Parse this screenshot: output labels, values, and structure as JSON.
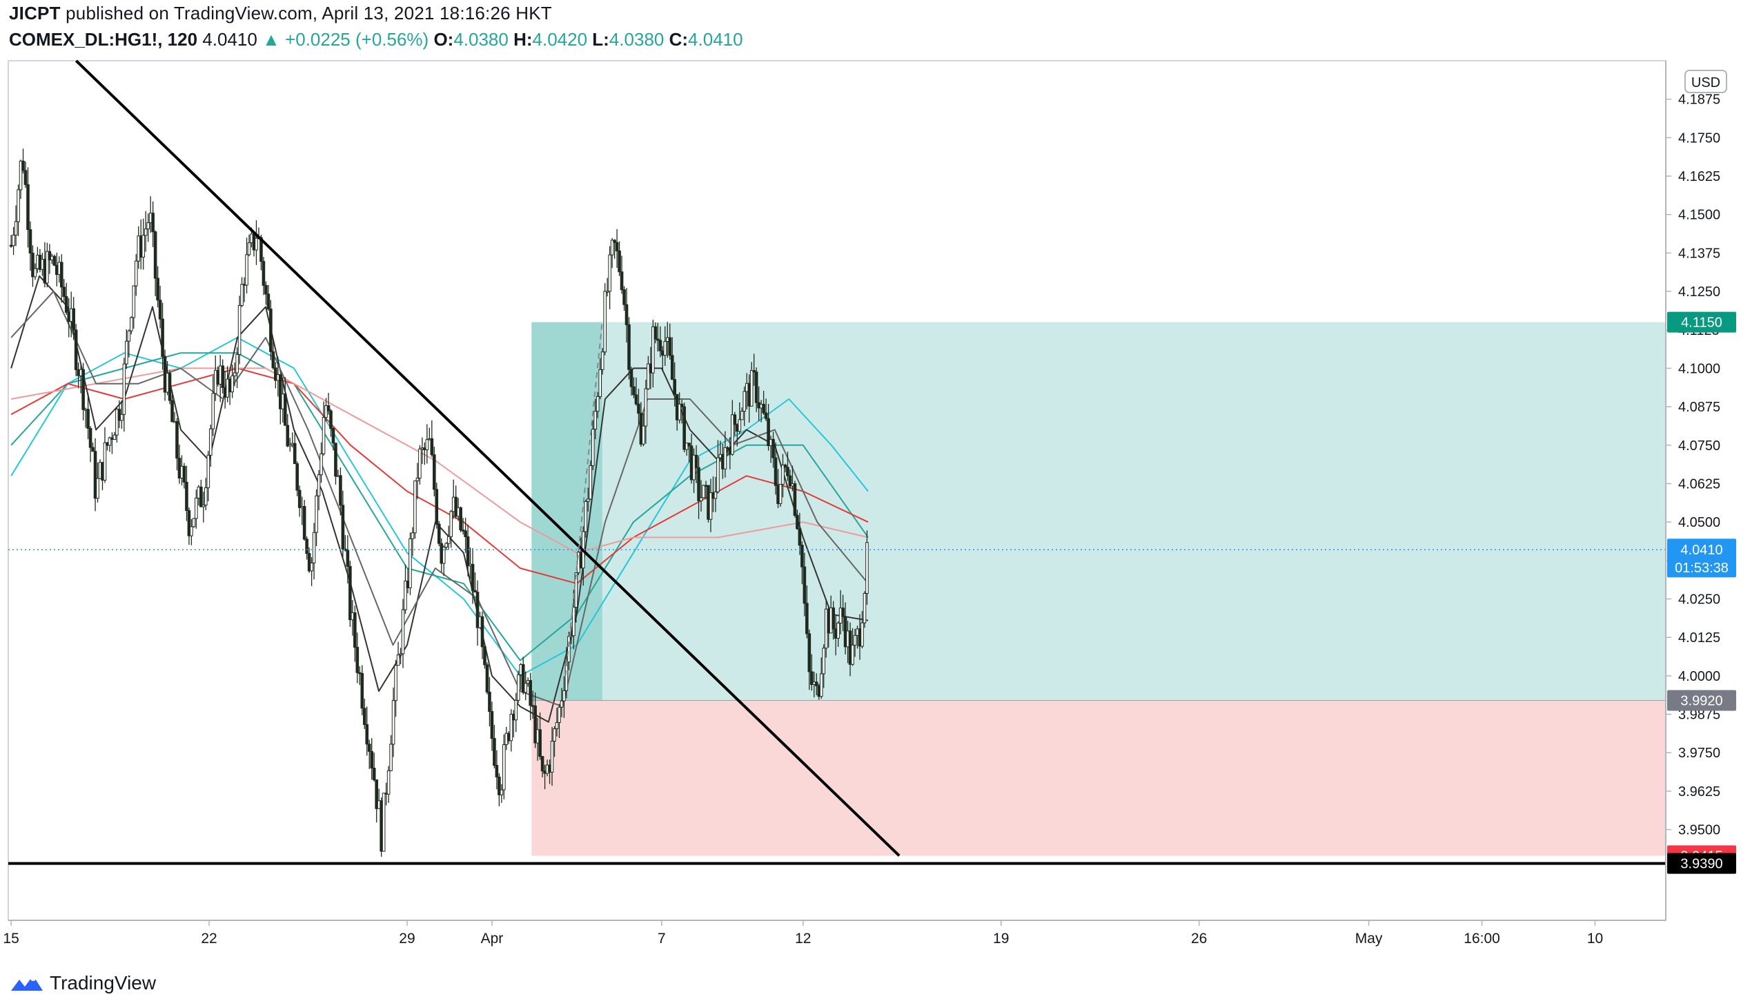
{
  "header": {
    "author": "JICPT",
    "published": "published on TradingView.com, April 13, 2021 18:16:26 HKT",
    "symbol": "COMEX_DL:HG1!, 120",
    "last": "4.0410",
    "arrow": "▲",
    "change": "+0.0225 (+0.56%)",
    "o_label": "O:",
    "o_value": "4.0380",
    "h_label": "H:",
    "h_value": "4.0420",
    "l_label": "L:",
    "l_value": "4.0380",
    "c_label": "C:",
    "c_value": "4.0410"
  },
  "footer": {
    "brand": "TradingView"
  },
  "colors": {
    "up_text": "#26a69a",
    "profit_zone": "#b2dfdb",
    "loss_zone": "#f8c8c8",
    "current_price_label": "#2196f3",
    "entry_label": "#787b86",
    "target_label": "#089981",
    "stop_label": "#f23645",
    "support_label": "#000000",
    "ma_teal": "#26c6da",
    "ma_red": "#e53935",
    "ma_salmon": "#ef9a9a"
  },
  "chart_data": {
    "type": "candlestick",
    "currency": "USD",
    "y_ticks": [
      "4.1875",
      "4.1750",
      "4.1625",
      "4.1500",
      "4.1375",
      "4.1250",
      "4.1125",
      "4.1000",
      "4.0875",
      "4.0750",
      "4.0625",
      "4.0500",
      "4.0375",
      "4.0250",
      "4.0125",
      "4.0000",
      "3.9875",
      "3.9750",
      "3.9625",
      "3.9500"
    ],
    "y_tick_values": [
      4.1875,
      4.175,
      4.1625,
      4.15,
      4.1375,
      4.125,
      4.1125,
      4.1,
      4.0875,
      4.075,
      4.0625,
      4.05,
      4.0375,
      4.025,
      4.0125,
      4.0,
      3.9875,
      3.975,
      3.9625,
      3.95
    ],
    "ylim": [
      3.9205,
      4.2
    ],
    "x_ticks": [
      {
        "label": "15",
        "day": 0
      },
      {
        "label": "22",
        "day": 7
      },
      {
        "label": "29",
        "day": 14
      },
      {
        "label": "Apr",
        "day": 17
      },
      {
        "label": "7",
        "day": 23
      },
      {
        "label": "12",
        "day": 28
      },
      {
        "label": "19",
        "day": 35
      },
      {
        "label": "26",
        "day": 42
      },
      {
        "label": "May",
        "day": 48
      },
      {
        "label": "16:00",
        "day": 52
      },
      {
        "label": "10",
        "day": 56
      }
    ],
    "xlim": [
      -0.1,
      58.5
    ],
    "price_labels": {
      "target": {
        "value": 4.115,
        "text": "4.1150"
      },
      "current": {
        "value": 4.041,
        "text": "4.0410",
        "countdown": "01:53:38"
      },
      "entry": {
        "value": 3.992,
        "text": "3.9920"
      },
      "stop": {
        "value": 3.9415,
        "text": "3.9415"
      },
      "support": {
        "value": 3.939,
        "text": "3.9390"
      }
    },
    "position": {
      "type": "long",
      "start_day": 18.4,
      "end_day": 58.5,
      "entry": 3.992,
      "target": 4.115,
      "stop": 3.9415
    },
    "trendline": {
      "from": {
        "day": 2.3,
        "price": 4.2
      },
      "to": {
        "day": 31.4,
        "price": 3.9415
      }
    },
    "support_line": {
      "price": 3.939
    },
    "dashed_projection": {
      "from": {
        "day": 19.6,
        "price": 4.0
      },
      "to": {
        "day": 20.9,
        "price": 4.115
      }
    },
    "series_anchors": [
      {
        "day": 0.0,
        "price": 4.14
      },
      {
        "day": 0.4,
        "price": 4.17
      },
      {
        "day": 0.8,
        "price": 4.13
      },
      {
        "day": 1.5,
        "price": 4.135
      },
      {
        "day": 2.0,
        "price": 4.12
      },
      {
        "day": 2.6,
        "price": 4.09
      },
      {
        "day": 3.0,
        "price": 4.06
      },
      {
        "day": 3.4,
        "price": 4.075
      },
      {
        "day": 3.9,
        "price": 4.09
      },
      {
        "day": 4.4,
        "price": 4.135
      },
      {
        "day": 4.9,
        "price": 4.15
      },
      {
        "day": 5.4,
        "price": 4.1
      },
      {
        "day": 5.9,
        "price": 4.07
      },
      {
        "day": 6.3,
        "price": 4.05
      },
      {
        "day": 6.8,
        "price": 4.06
      },
      {
        "day": 7.3,
        "price": 4.1
      },
      {
        "day": 7.8,
        "price": 4.09
      },
      {
        "day": 8.2,
        "price": 4.13
      },
      {
        "day": 8.7,
        "price": 4.145
      },
      {
        "day": 9.2,
        "price": 4.11
      },
      {
        "day": 9.7,
        "price": 4.08
      },
      {
        "day": 10.2,
        "price": 4.06
      },
      {
        "day": 10.6,
        "price": 4.035
      },
      {
        "day": 11.1,
        "price": 4.09
      },
      {
        "day": 11.6,
        "price": 4.06
      },
      {
        "day": 12.0,
        "price": 4.02
      },
      {
        "day": 12.4,
        "price": 3.995
      },
      {
        "day": 12.8,
        "price": 3.97
      },
      {
        "day": 13.1,
        "price": 3.948
      },
      {
        "day": 13.5,
        "price": 3.99
      },
      {
        "day": 14.0,
        "price": 4.03
      },
      {
        "day": 14.4,
        "price": 4.07
      },
      {
        "day": 14.8,
        "price": 4.075
      },
      {
        "day": 15.2,
        "price": 4.04
      },
      {
        "day": 15.6,
        "price": 4.055
      },
      {
        "day": 16.0,
        "price": 4.045
      },
      {
        "day": 16.5,
        "price": 4.02
      },
      {
        "day": 16.9,
        "price": 3.985
      },
      {
        "day": 17.3,
        "price": 3.965
      },
      {
        "day": 17.7,
        "price": 3.99
      },
      {
        "day": 18.1,
        "price": 4.0
      },
      {
        "day": 18.5,
        "price": 3.985
      },
      {
        "day": 18.8,
        "price": 3.965
      },
      {
        "day": 19.1,
        "price": 3.975
      },
      {
        "day": 19.4,
        "price": 3.99
      },
      {
        "day": 19.7,
        "price": 4.01
      },
      {
        "day": 20.0,
        "price": 4.03
      },
      {
        "day": 20.4,
        "price": 4.06
      },
      {
        "day": 20.7,
        "price": 4.09
      },
      {
        "day": 21.0,
        "price": 4.12
      },
      {
        "day": 21.3,
        "price": 4.14
      },
      {
        "day": 21.6,
        "price": 4.13
      },
      {
        "day": 22.0,
        "price": 4.09
      },
      {
        "day": 22.3,
        "price": 4.08
      },
      {
        "day": 22.7,
        "price": 4.11
      },
      {
        "day": 23.1,
        "price": 4.11
      },
      {
        "day": 23.5,
        "price": 4.09
      },
      {
        "day": 23.9,
        "price": 4.075
      },
      {
        "day": 24.3,
        "price": 4.06
      },
      {
        "day": 24.7,
        "price": 4.055
      },
      {
        "day": 25.1,
        "price": 4.07
      },
      {
        "day": 25.5,
        "price": 4.08
      },
      {
        "day": 25.9,
        "price": 4.09
      },
      {
        "day": 26.3,
        "price": 4.095
      },
      {
        "day": 26.7,
        "price": 4.08
      },
      {
        "day": 27.1,
        "price": 4.06
      },
      {
        "day": 27.5,
        "price": 4.07
      },
      {
        "day": 27.9,
        "price": 4.045
      },
      {
        "day": 28.2,
        "price": 4.0
      },
      {
        "day": 28.5,
        "price": 3.993
      },
      {
        "day": 28.8,
        "price": 4.02
      },
      {
        "day": 29.1,
        "price": 4.015
      },
      {
        "day": 29.4,
        "price": 4.02
      },
      {
        "day": 29.7,
        "price": 4.005
      },
      {
        "day": 30.0,
        "price": 4.015
      },
      {
        "day": 30.3,
        "price": 4.041
      }
    ],
    "ma_series": [
      {
        "color": "#26c6da",
        "points": [
          [
            0,
            4.065
          ],
          [
            2,
            4.095
          ],
          [
            4,
            4.105
          ],
          [
            6,
            4.1
          ],
          [
            8,
            4.11
          ],
          [
            10,
            4.1
          ],
          [
            12,
            4.07
          ],
          [
            14,
            4.04
          ],
          [
            16,
            4.025
          ],
          [
            18,
            4.0
          ],
          [
            20,
            4.01
          ],
          [
            22,
            4.04
          ],
          [
            24,
            4.07
          ],
          [
            26,
            4.08
          ],
          [
            27.5,
            4.09
          ],
          [
            29,
            4.075
          ],
          [
            30.3,
            4.06
          ]
        ]
      },
      {
        "color": "#26a69a",
        "points": [
          [
            0,
            4.075
          ],
          [
            2,
            4.095
          ],
          [
            4,
            4.1
          ],
          [
            6,
            4.105
          ],
          [
            8,
            4.105
          ],
          [
            10,
            4.095
          ],
          [
            12,
            4.065
          ],
          [
            14,
            4.035
          ],
          [
            16,
            4.03
          ],
          [
            18,
            4.005
          ],
          [
            20,
            4.02
          ],
          [
            22,
            4.05
          ],
          [
            24,
            4.065
          ],
          [
            26,
            4.075
          ],
          [
            28,
            4.075
          ],
          [
            30.3,
            4.045
          ]
        ]
      },
      {
        "color": "#e53935",
        "points": [
          [
            0,
            4.085
          ],
          [
            2,
            4.095
          ],
          [
            4,
            4.09
          ],
          [
            6,
            4.095
          ],
          [
            8,
            4.1
          ],
          [
            10,
            4.095
          ],
          [
            12,
            4.075
          ],
          [
            14,
            4.06
          ],
          [
            16,
            4.05
          ],
          [
            18,
            4.035
          ],
          [
            20,
            4.03
          ],
          [
            22,
            4.045
          ],
          [
            24,
            4.055
          ],
          [
            26,
            4.065
          ],
          [
            28,
            4.06
          ],
          [
            30.3,
            4.05
          ]
        ]
      },
      {
        "color": "#ef9a9a",
        "points": [
          [
            0,
            4.09
          ],
          [
            3,
            4.095
          ],
          [
            6,
            4.1
          ],
          [
            9,
            4.1
          ],
          [
            12,
            4.085
          ],
          [
            15,
            4.07
          ],
          [
            18,
            4.05
          ],
          [
            20,
            4.04
          ],
          [
            22,
            4.045
          ],
          [
            25,
            4.045
          ],
          [
            28,
            4.05
          ],
          [
            30.3,
            4.045
          ]
        ]
      },
      {
        "color": "#333333",
        "points": [
          [
            0,
            4.1
          ],
          [
            1,
            4.13
          ],
          [
            2,
            4.12
          ],
          [
            3,
            4.08
          ],
          [
            4,
            4.09
          ],
          [
            5,
            4.12
          ],
          [
            6,
            4.08
          ],
          [
            7,
            4.07
          ],
          [
            8,
            4.11
          ],
          [
            9,
            4.12
          ],
          [
            10,
            4.08
          ],
          [
            11,
            4.06
          ],
          [
            12,
            4.03
          ],
          [
            13,
            3.995
          ],
          [
            14,
            4.01
          ],
          [
            15,
            4.05
          ],
          [
            16,
            4.04
          ],
          [
            17,
            4.0
          ],
          [
            18,
            3.99
          ],
          [
            19,
            3.985
          ],
          [
            20,
            4.02
          ],
          [
            21,
            4.09
          ],
          [
            22,
            4.1
          ],
          [
            23,
            4.1
          ],
          [
            24,
            4.08
          ],
          [
            25,
            4.07
          ],
          [
            26,
            4.08
          ],
          [
            27,
            4.075
          ],
          [
            28,
            4.045
          ],
          [
            29,
            4.02
          ],
          [
            30.3,
            4.018
          ]
        ]
      },
      {
        "color": "#666666",
        "points": [
          [
            0,
            4.11
          ],
          [
            1.5,
            4.125
          ],
          [
            3,
            4.095
          ],
          [
            4.5,
            4.095
          ],
          [
            6,
            4.1
          ],
          [
            7.5,
            4.09
          ],
          [
            9,
            4.11
          ],
          [
            10.5,
            4.08
          ],
          [
            12,
            4.045
          ],
          [
            13.5,
            4.01
          ],
          [
            15,
            4.035
          ],
          [
            16.5,
            4.025
          ],
          [
            18,
            3.995
          ],
          [
            19.5,
            3.99
          ],
          [
            21,
            4.05
          ],
          [
            22.5,
            4.09
          ],
          [
            24,
            4.09
          ],
          [
            25.5,
            4.075
          ],
          [
            27,
            4.08
          ],
          [
            28.5,
            4.05
          ],
          [
            30.3,
            4.03
          ]
        ]
      }
    ]
  }
}
